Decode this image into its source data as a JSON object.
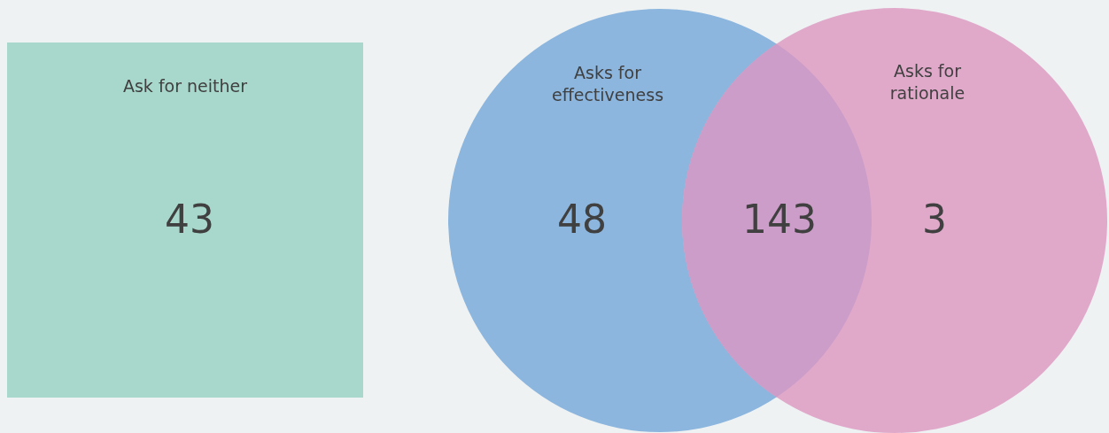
{
  "chart_data": {
    "type": "other",
    "categories": [
      "Ask for neither",
      "Asks for effectiveness",
      null,
      "Asks for rationale"
    ],
    "values": [
      43,
      48,
      143,
      3
    ],
    "data_labels": true,
    "colors": [
      "#a8d8cb",
      "#8cb6de",
      "#cc9dc8",
      "#e0a9ca"
    ]
  }
}
